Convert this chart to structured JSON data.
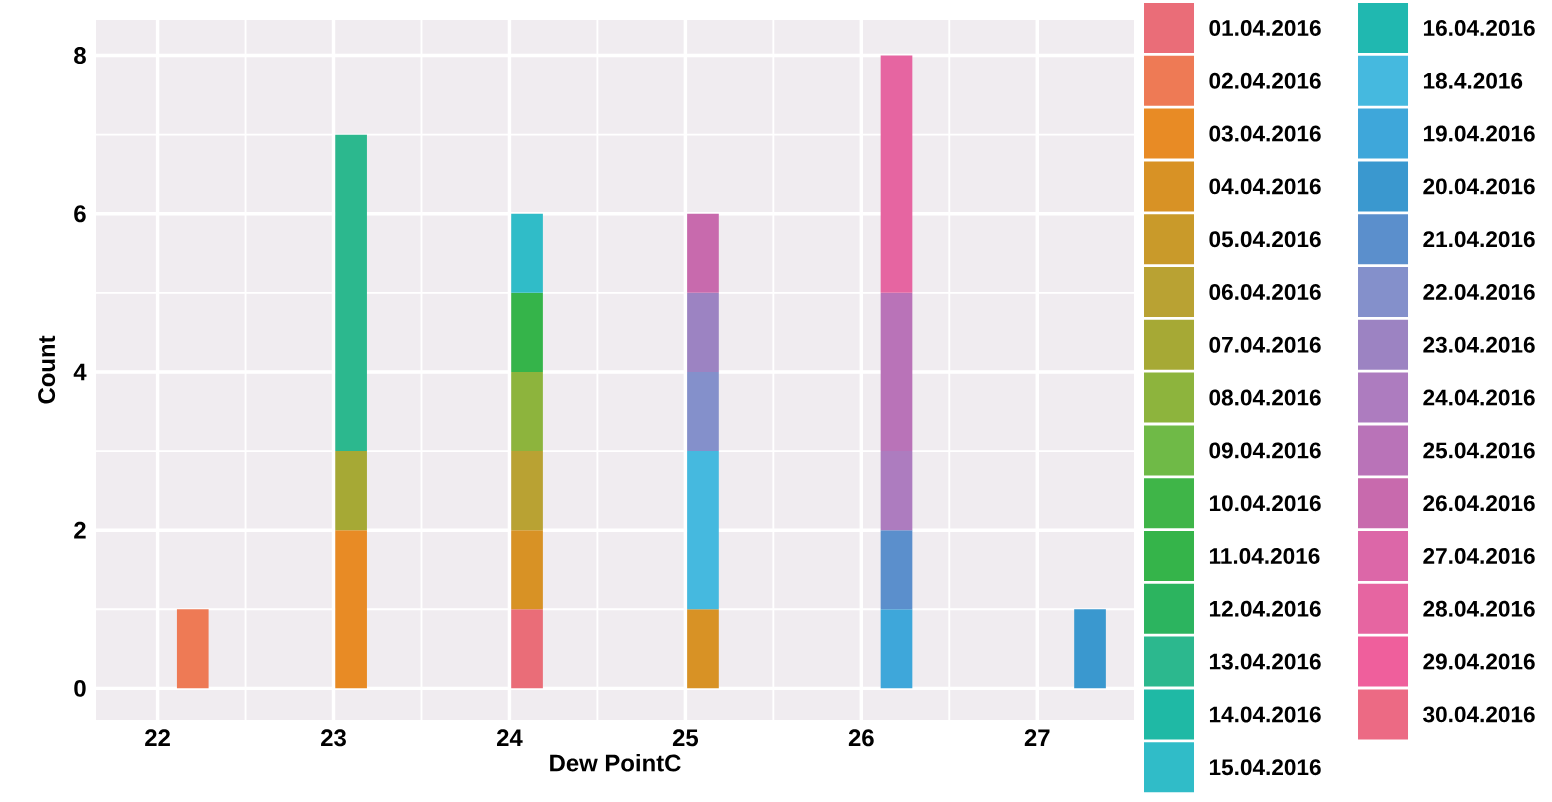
{
  "chart_data": {
    "type": "bar",
    "stacked": true,
    "xlabel": "Dew PointC",
    "ylabel": "Count",
    "x": [
      22.2,
      23.1,
      24.1,
      25.1,
      26.2,
      27.3
    ],
    "xlim": [
      21.65,
      27.55
    ],
    "ylim": [
      -0.4,
      8.45
    ],
    "xticks": [
      22,
      23,
      24,
      25,
      26,
      27
    ],
    "yticks": [
      0,
      2,
      4,
      6,
      8
    ],
    "grid": true,
    "legend": "right",
    "series": [
      {
        "name": "01.04.2016",
        "color": "#ea6d78",
        "values": [
          null,
          null,
          1,
          null,
          null,
          null
        ]
      },
      {
        "name": "02.04.2016",
        "color": "#ee7a55",
        "values": [
          1,
          null,
          null,
          null,
          null,
          null
        ]
      },
      {
        "name": "03.04.2016",
        "color": "#e88b25",
        "values": [
          null,
          2,
          null,
          null,
          null,
          null
        ]
      },
      {
        "name": "04.04.2016",
        "color": "#d89225",
        "values": [
          null,
          null,
          1,
          1,
          null,
          null
        ]
      },
      {
        "name": "05.04.2016",
        "color": "#c99a2a",
        "values": [
          null,
          null,
          null,
          null,
          null,
          null
        ]
      },
      {
        "name": "06.04.2016",
        "color": "#b9a233",
        "values": [
          null,
          null,
          1,
          null,
          null,
          null
        ]
      },
      {
        "name": "07.04.2016",
        "color": "#a6a935",
        "values": [
          null,
          1,
          null,
          null,
          null,
          null
        ]
      },
      {
        "name": "08.04.2016",
        "color": "#8db43d",
        "values": [
          null,
          null,
          1,
          null,
          null,
          null
        ]
      },
      {
        "name": "09.04.2016",
        "color": "#6fba47",
        "values": [
          null,
          null,
          null,
          null,
          null,
          null
        ]
      },
      {
        "name": "10.04.2016",
        "color": "#3fb548",
        "values": [
          null,
          null,
          null,
          null,
          null,
          null
        ]
      },
      {
        "name": "11.04.2016",
        "color": "#35b44a",
        "values": [
          null,
          null,
          1,
          null,
          null,
          null
        ]
      },
      {
        "name": "12.04.2016",
        "color": "#2cb45f",
        "values": [
          null,
          null,
          null,
          null,
          null,
          null
        ]
      },
      {
        "name": "13.04.2016",
        "color": "#2cb88e",
        "values": [
          null,
          4,
          null,
          null,
          null,
          null
        ]
      },
      {
        "name": "14.04.2016",
        "color": "#1fb9a5",
        "values": [
          null,
          null,
          null,
          null,
          null,
          null
        ]
      },
      {
        "name": "15.04.2016",
        "color": "#30bcc8",
        "values": [
          null,
          null,
          1,
          null,
          null,
          null
        ]
      },
      {
        "name": "16.04.2016",
        "color": "#20b8b0",
        "values": [
          null,
          null,
          null,
          null,
          null,
          null
        ]
      },
      {
        "name": "18.4.2016",
        "color": "#45b9df",
        "values": [
          null,
          null,
          null,
          2,
          null,
          null
        ]
      },
      {
        "name": "19.04.2016",
        "color": "#3ea7da",
        "values": [
          null,
          null,
          null,
          null,
          1,
          null
        ]
      },
      {
        "name": "20.04.2016",
        "color": "#3a98cf",
        "values": [
          null,
          null,
          null,
          null,
          null,
          1
        ]
      },
      {
        "name": "21.04.2016",
        "color": "#5b8fcc",
        "values": [
          null,
          null,
          null,
          null,
          1,
          null
        ]
      },
      {
        "name": "22.04.2016",
        "color": "#8490cb",
        "values": [
          null,
          null,
          null,
          1,
          null,
          null
        ]
      },
      {
        "name": "23.04.2016",
        "color": "#9c83c2",
        "values": [
          null,
          null,
          null,
          1,
          null,
          null
        ]
      },
      {
        "name": "24.04.2016",
        "color": "#ad7cbf",
        "values": [
          null,
          null,
          null,
          null,
          1,
          null
        ]
      },
      {
        "name": "25.04.2016",
        "color": "#b973b8",
        "values": [
          null,
          null,
          null,
          null,
          2,
          null
        ]
      },
      {
        "name": "26.04.2016",
        "color": "#c86aad",
        "values": [
          null,
          null,
          null,
          1,
          null,
          null
        ]
      },
      {
        "name": "27.04.2016",
        "color": "#dc67a8",
        "values": [
          null,
          null,
          null,
          null,
          null,
          null
        ]
      },
      {
        "name": "28.04.2016",
        "color": "#e665a1",
        "values": [
          null,
          null,
          null,
          null,
          3,
          null
        ]
      },
      {
        "name": "29.04.2016",
        "color": "#ef5f9c",
        "values": [
          null,
          null,
          null,
          null,
          null,
          null
        ]
      },
      {
        "name": "30.04.2016",
        "color": "#ec6a84",
        "values": [
          null,
          null,
          null,
          null,
          null,
          null
        ]
      }
    ]
  }
}
